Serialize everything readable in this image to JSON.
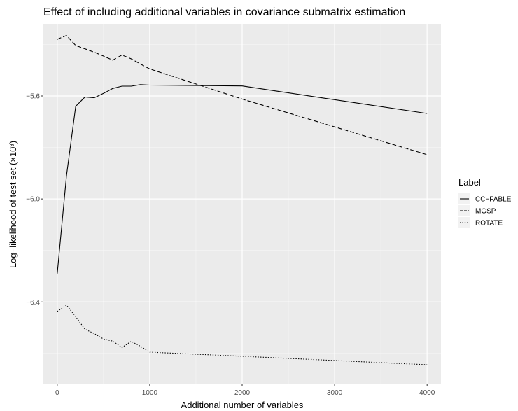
{
  "chart_data": {
    "type": "line",
    "title": "Effect of including additional variables in covariance submatrix estimation",
    "xlabel": "Additional number of variables",
    "ylabel": "Log−likelihood of test set (×10³)",
    "xlim": [
      -150,
      4150
    ],
    "ylim": [
      -6.72,
      -5.32
    ],
    "xticks": [
      0,
      1000,
      2000,
      3000,
      4000
    ],
    "yticks": [
      -6.4,
      -6.0,
      -5.6
    ],
    "ytick_labels": [
      "−6.4",
      "−6.0",
      "−5.6"
    ],
    "grid": true,
    "background": "#ebebeb",
    "legend_title": "Label",
    "legend_position": "right",
    "series": [
      {
        "name": "CC−FABLE",
        "linetype": "solid",
        "x": [
          0,
          100,
          200,
          300,
          400,
          500,
          600,
          700,
          800,
          900,
          1000,
          2000,
          4000
        ],
        "y": [
          -6.29,
          -5.91,
          -5.64,
          -5.604,
          -5.607,
          -5.59,
          -5.571,
          -5.562,
          -5.562,
          -5.556,
          -5.558,
          -5.561,
          -5.668
        ]
      },
      {
        "name": "MGSP",
        "linetype": "dashed",
        "x": [
          0,
          100,
          200,
          300,
          400,
          500,
          600,
          700,
          800,
          900,
          1000,
          2000,
          4000
        ],
        "y": [
          -5.38,
          -5.365,
          -5.404,
          -5.417,
          -5.43,
          -5.445,
          -5.461,
          -5.441,
          -5.456,
          -5.476,
          -5.495,
          -5.612,
          -5.828
        ]
      },
      {
        "name": "ROTATE",
        "linetype": "dotted",
        "x": [
          0,
          100,
          200,
          300,
          400,
          500,
          600,
          700,
          800,
          900,
          1000,
          2000,
          4000
        ],
        "y": [
          -6.437,
          -6.412,
          -6.457,
          -6.506,
          -6.523,
          -6.544,
          -6.552,
          -6.577,
          -6.553,
          -6.572,
          -6.595,
          -6.611,
          -6.644
        ]
      }
    ]
  }
}
